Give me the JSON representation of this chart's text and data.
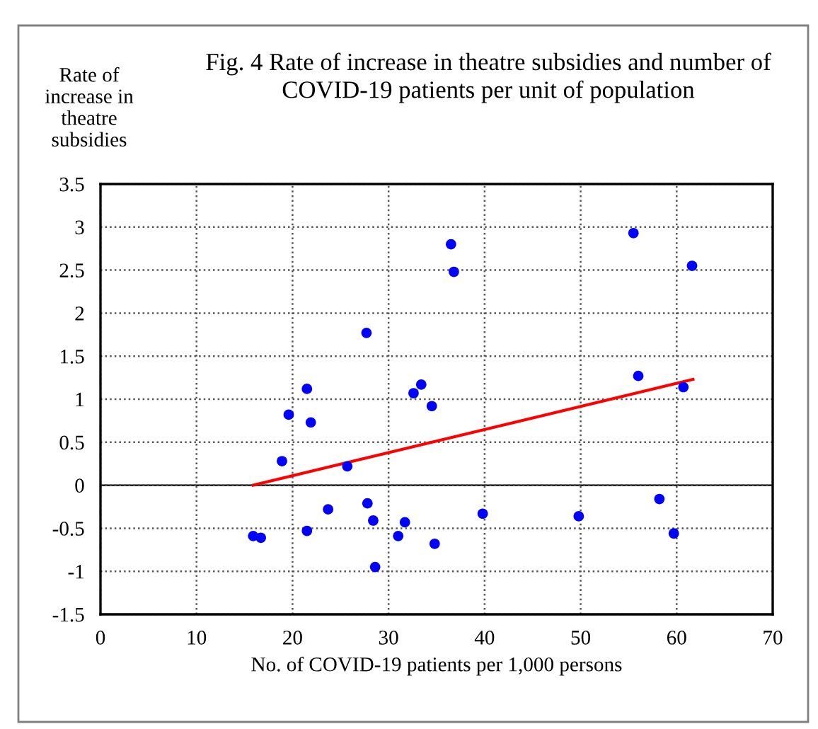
{
  "chart_data": {
    "type": "scatter",
    "title": "Fig. 4 Rate of increase in theatre subsidies and number of\nCOVID-19 patients per unit of population",
    "xlabel": "No. of COVID-19 patients per 1,000 persons",
    "ylabel": "Rate of\nincrease in\ntheatre\nsubsidies",
    "series": [
      {
        "color": "#0000ff",
        "marker": "circle",
        "x": [
          27.7,
          21.5,
          19.6,
          21.9,
          18.9,
          25.7,
          32.6,
          33.4,
          34.5,
          23.7,
          27.8,
          28.4,
          31.7,
          31.0,
          34.8,
          21.5,
          15.9,
          16.7,
          28.6,
          36.5,
          36.8,
          55.5,
          61.6,
          56.0,
          60.7,
          39.8,
          49.8,
          58.2,
          59.7
        ],
        "values": [
          1.77,
          1.12,
          0.82,
          0.73,
          0.28,
          0.22,
          1.07,
          1.17,
          0.92,
          -0.28,
          -0.21,
          -0.41,
          -0.43,
          -0.59,
          -0.68,
          -0.53,
          -0.59,
          -0.61,
          -0.95,
          2.8,
          2.48,
          2.93,
          2.55,
          1.27,
          1.14,
          -0.33,
          -0.36,
          -0.16,
          -0.56
        ]
      },
      {
        "type": "line",
        "color": "#ff0000",
        "marker": "none",
        "x": [
          15.9,
          61.7
        ],
        "values": [
          0,
          1.23
        ]
      }
    ],
    "xlim": [
      0,
      70
    ],
    "xticks": [
      0,
      10,
      20,
      30,
      40,
      50,
      60,
      70
    ],
    "ylim": [
      -1.5,
      3.5
    ],
    "yticks": [
      -1.5,
      -1,
      -0.5,
      0,
      0.5,
      1,
      1.5,
      2,
      2.5,
      3,
      3.5
    ],
    "grid": true
  }
}
